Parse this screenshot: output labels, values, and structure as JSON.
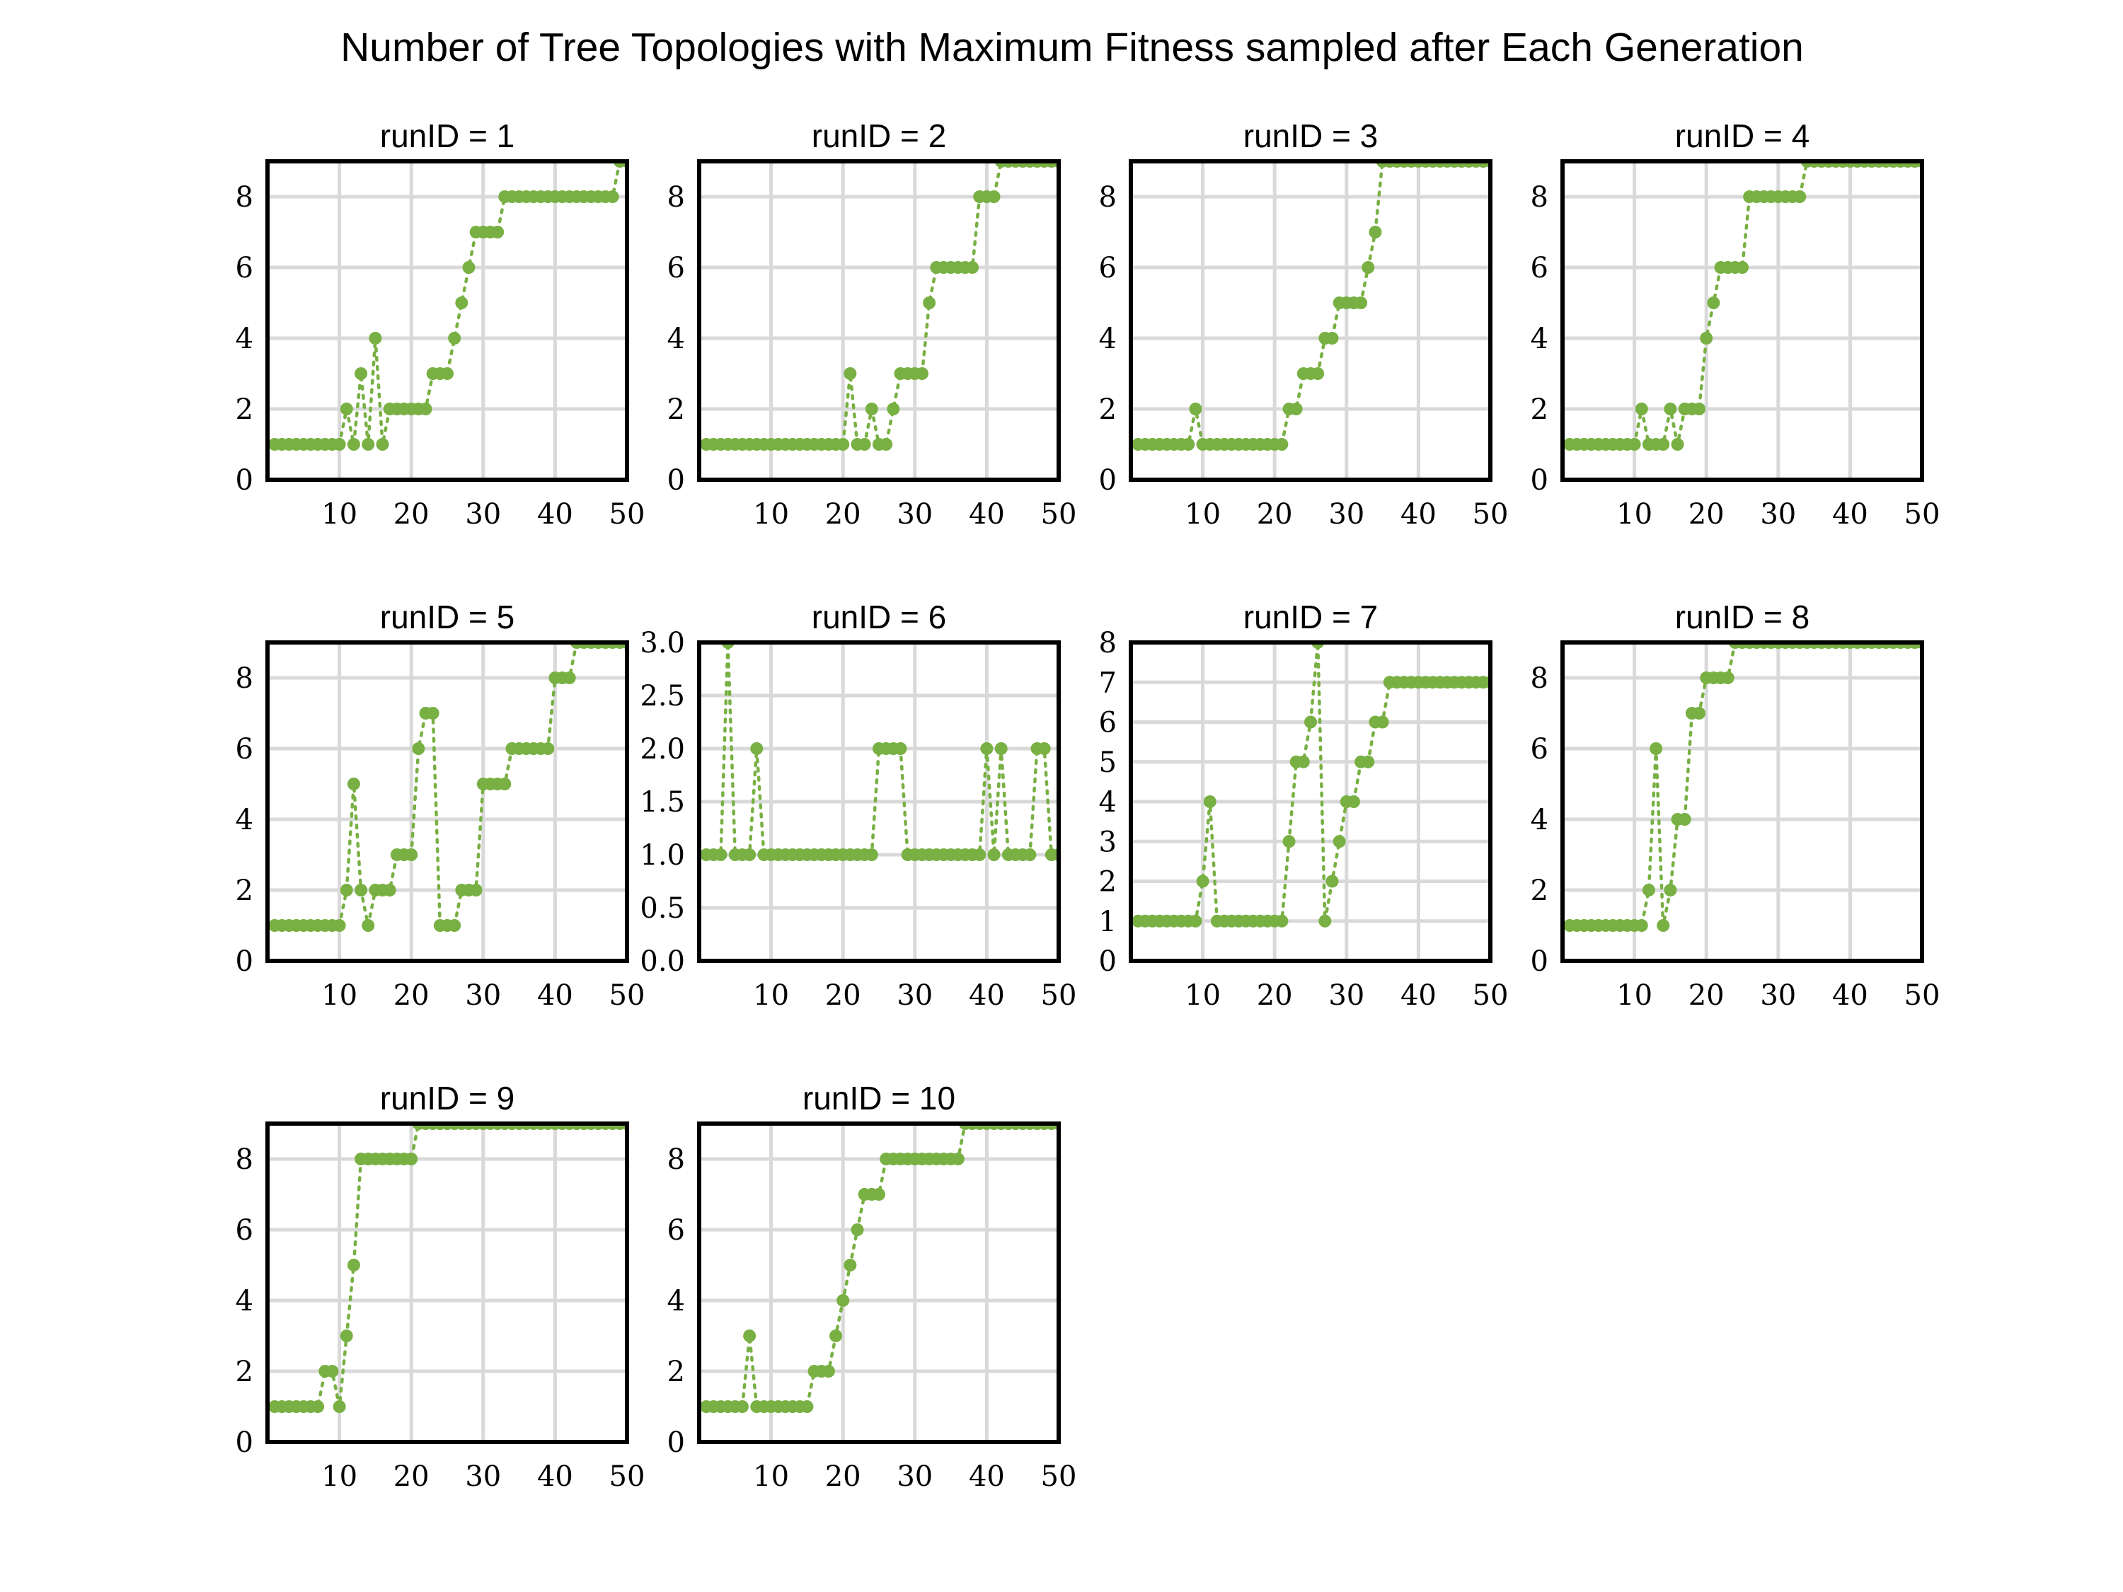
{
  "title": "Number of Tree Topologies with Maximum Fitness sampled after Each Generation",
  "colors": {
    "series": "#78b043",
    "grid": "#d9d9d9",
    "frame": "#000000",
    "background": "#ffffff"
  },
  "chart_data": [
    {
      "type": "scatter",
      "title": "runID = 1",
      "xlim": [
        0,
        50
      ],
      "ylim": [
        0,
        9
      ],
      "xticks": [
        "10",
        "20",
        "30",
        "40",
        "50"
      ],
      "yticks": [
        "0",
        "2",
        "4",
        "6",
        "8"
      ],
      "grid": true,
      "x": [
        1,
        2,
        3,
        4,
        5,
        6,
        7,
        8,
        9,
        10,
        11,
        12,
        13,
        14,
        15,
        16,
        17,
        18,
        19,
        20,
        21,
        22,
        23,
        24,
        25,
        26,
        27,
        28,
        29,
        30,
        31,
        32,
        33,
        34,
        35,
        36,
        37,
        38,
        39,
        40,
        41,
        42,
        43,
        44,
        45,
        46,
        47,
        48,
        49,
        50
      ],
      "y": [
        1,
        1,
        1,
        1,
        1,
        1,
        1,
        1,
        1,
        1,
        2,
        1,
        3,
        1,
        4,
        1,
        2,
        2,
        2,
        2,
        2,
        2,
        3,
        3,
        3,
        4,
        5,
        6,
        7,
        7,
        7,
        7,
        8,
        8,
        8,
        8,
        8,
        8,
        8,
        8,
        8,
        8,
        8,
        8,
        8,
        8,
        8,
        8,
        9,
        9
      ]
    },
    {
      "type": "scatter",
      "title": "runID = 2",
      "xlim": [
        0,
        50
      ],
      "ylim": [
        0,
        9
      ],
      "xticks": [
        "10",
        "20",
        "30",
        "40",
        "50"
      ],
      "yticks": [
        "0",
        "2",
        "4",
        "6",
        "8"
      ],
      "grid": true,
      "x": [
        1,
        2,
        3,
        4,
        5,
        6,
        7,
        8,
        9,
        10,
        11,
        12,
        13,
        14,
        15,
        16,
        17,
        18,
        19,
        20,
        21,
        22,
        23,
        24,
        25,
        26,
        27,
        28,
        29,
        30,
        31,
        32,
        33,
        34,
        35,
        36,
        37,
        38,
        39,
        40,
        41,
        42,
        43,
        44,
        45,
        46,
        47,
        48,
        49,
        50
      ],
      "y": [
        1,
        1,
        1,
        1,
        1,
        1,
        1,
        1,
        1,
        1,
        1,
        1,
        1,
        1,
        1,
        1,
        1,
        1,
        1,
        1,
        3,
        1,
        1,
        2,
        1,
        1,
        2,
        3,
        3,
        3,
        3,
        5,
        6,
        6,
        6,
        6,
        6,
        6,
        8,
        8,
        8,
        9,
        9,
        9,
        9,
        9,
        9,
        9,
        9,
        9
      ]
    },
    {
      "type": "scatter",
      "title": "runID = 3",
      "xlim": [
        0,
        50
      ],
      "ylim": [
        0,
        9
      ],
      "xticks": [
        "10",
        "20",
        "30",
        "40",
        "50"
      ],
      "yticks": [
        "0",
        "2",
        "4",
        "6",
        "8"
      ],
      "grid": true,
      "x": [
        1,
        2,
        3,
        4,
        5,
        6,
        7,
        8,
        9,
        10,
        11,
        12,
        13,
        14,
        15,
        16,
        17,
        18,
        19,
        20,
        21,
        22,
        23,
        24,
        25,
        26,
        27,
        28,
        29,
        30,
        31,
        32,
        33,
        34,
        35,
        36,
        37,
        38,
        39,
        40,
        41,
        42,
        43,
        44,
        45,
        46,
        47,
        48,
        49,
        50
      ],
      "y": [
        1,
        1,
        1,
        1,
        1,
        1,
        1,
        1,
        2,
        1,
        1,
        1,
        1,
        1,
        1,
        1,
        1,
        1,
        1,
        1,
        1,
        2,
        2,
        3,
        3,
        3,
        4,
        4,
        5,
        5,
        5,
        5,
        6,
        7,
        9,
        9,
        9,
        9,
        9,
        9,
        9,
        9,
        9,
        9,
        9,
        9,
        9,
        9,
        9,
        9
      ]
    },
    {
      "type": "scatter",
      "title": "runID = 4",
      "xlim": [
        0,
        50
      ],
      "ylim": [
        0,
        9
      ],
      "xticks": [
        "10",
        "20",
        "30",
        "40",
        "50"
      ],
      "yticks": [
        "0",
        "2",
        "4",
        "6",
        "8"
      ],
      "grid": true,
      "x": [
        1,
        2,
        3,
        4,
        5,
        6,
        7,
        8,
        9,
        10,
        11,
        12,
        13,
        14,
        15,
        16,
        17,
        18,
        19,
        20,
        21,
        22,
        23,
        24,
        25,
        26,
        27,
        28,
        29,
        30,
        31,
        32,
        33,
        34,
        35,
        36,
        37,
        38,
        39,
        40,
        41,
        42,
        43,
        44,
        45,
        46,
        47,
        48,
        49,
        50
      ],
      "y": [
        1,
        1,
        1,
        1,
        1,
        1,
        1,
        1,
        1,
        1,
        2,
        1,
        1,
        1,
        2,
        1,
        2,
        2,
        2,
        4,
        5,
        6,
        6,
        6,
        6,
        8,
        8,
        8,
        8,
        8,
        8,
        8,
        8,
        9,
        9,
        9,
        9,
        9,
        9,
        9,
        9,
        9,
        9,
        9,
        9,
        9,
        9,
        9,
        9,
        9
      ]
    },
    {
      "type": "scatter",
      "title": "runID = 5",
      "xlim": [
        0,
        50
      ],
      "ylim": [
        0,
        9
      ],
      "xticks": [
        "10",
        "20",
        "30",
        "40",
        "50"
      ],
      "yticks": [
        "0",
        "2",
        "4",
        "6",
        "8"
      ],
      "grid": true,
      "x": [
        1,
        2,
        3,
        4,
        5,
        6,
        7,
        8,
        9,
        10,
        11,
        12,
        13,
        14,
        15,
        16,
        17,
        18,
        19,
        20,
        21,
        22,
        23,
        24,
        25,
        26,
        27,
        28,
        29,
        30,
        31,
        32,
        33,
        34,
        35,
        36,
        37,
        38,
        39,
        40,
        41,
        42,
        43,
        44,
        45,
        46,
        47,
        48,
        49,
        50
      ],
      "y": [
        1,
        1,
        1,
        1,
        1,
        1,
        1,
        1,
        1,
        1,
        2,
        5,
        2,
        1,
        2,
        2,
        2,
        3,
        3,
        3,
        6,
        7,
        7,
        1,
        1,
        1,
        2,
        2,
        2,
        5,
        5,
        5,
        5,
        6,
        6,
        6,
        6,
        6,
        6,
        8,
        8,
        8,
        9,
        9,
        9,
        9,
        9,
        9,
        9,
        9
      ]
    },
    {
      "type": "scatter",
      "title": "runID = 6",
      "xlim": [
        0,
        50
      ],
      "ylim": [
        0,
        3
      ],
      "xticks": [
        "10",
        "20",
        "30",
        "40",
        "50"
      ],
      "yticks": [
        "0.0",
        "0.5",
        "1.0",
        "1.5",
        "2.0",
        "2.5",
        "3.0"
      ],
      "grid": true,
      "x": [
        1,
        2,
        3,
        4,
        5,
        6,
        7,
        8,
        9,
        10,
        11,
        12,
        13,
        14,
        15,
        16,
        17,
        18,
        19,
        20,
        21,
        22,
        23,
        24,
        25,
        26,
        27,
        28,
        29,
        30,
        31,
        32,
        33,
        34,
        35,
        36,
        37,
        38,
        39,
        40,
        41,
        42,
        43,
        44,
        45,
        46,
        47,
        48,
        49,
        50
      ],
      "y": [
        1,
        1,
        1,
        3,
        1,
        1,
        1,
        2,
        1,
        1,
        1,
        1,
        1,
        1,
        1,
        1,
        1,
        1,
        1,
        1,
        1,
        1,
        1,
        1,
        2,
        2,
        2,
        2,
        1,
        1,
        1,
        1,
        1,
        1,
        1,
        1,
        1,
        1,
        1,
        2,
        1,
        2,
        1,
        1,
        1,
        1,
        2,
        2,
        1,
        1
      ]
    },
    {
      "type": "scatter",
      "title": "runID = 7",
      "xlim": [
        0,
        50
      ],
      "ylim": [
        0,
        8
      ],
      "xticks": [
        "10",
        "20",
        "30",
        "40",
        "50"
      ],
      "yticks": [
        "0",
        "1",
        "2",
        "3",
        "4",
        "5",
        "6",
        "7",
        "8"
      ],
      "grid": true,
      "x": [
        1,
        2,
        3,
        4,
        5,
        6,
        7,
        8,
        9,
        10,
        11,
        12,
        13,
        14,
        15,
        16,
        17,
        18,
        19,
        20,
        21,
        22,
        23,
        24,
        25,
        26,
        27,
        28,
        29,
        30,
        31,
        32,
        33,
        34,
        35,
        36,
        37,
        38,
        39,
        40,
        41,
        42,
        43,
        44,
        45,
        46,
        47,
        48,
        49,
        50
      ],
      "y": [
        1,
        1,
        1,
        1,
        1,
        1,
        1,
        1,
        1,
        2,
        4,
        1,
        1,
        1,
        1,
        1,
        1,
        1,
        1,
        1,
        1,
        3,
        5,
        5,
        6,
        8,
        1,
        2,
        3,
        4,
        4,
        5,
        5,
        6,
        6,
        7,
        7,
        7,
        7,
        7,
        7,
        7,
        7,
        7,
        7,
        7,
        7,
        7,
        7,
        7
      ]
    },
    {
      "type": "scatter",
      "title": "runID = 8",
      "xlim": [
        0,
        50
      ],
      "ylim": [
        0,
        9
      ],
      "xticks": [
        "10",
        "20",
        "30",
        "40",
        "50"
      ],
      "yticks": [
        "0",
        "2",
        "4",
        "6",
        "8"
      ],
      "grid": true,
      "x": [
        1,
        2,
        3,
        4,
        5,
        6,
        7,
        8,
        9,
        10,
        11,
        12,
        13,
        14,
        15,
        16,
        17,
        18,
        19,
        20,
        21,
        22,
        23,
        24,
        25,
        26,
        27,
        28,
        29,
        30,
        31,
        32,
        33,
        34,
        35,
        36,
        37,
        38,
        39,
        40,
        41,
        42,
        43,
        44,
        45,
        46,
        47,
        48,
        49,
        50
      ],
      "y": [
        1,
        1,
        1,
        1,
        1,
        1,
        1,
        1,
        1,
        1,
        1,
        2,
        6,
        1,
        2,
        4,
        4,
        7,
        7,
        8,
        8,
        8,
        8,
        9,
        9,
        9,
        9,
        9,
        9,
        9,
        9,
        9,
        9,
        9,
        9,
        9,
        9,
        9,
        9,
        9,
        9,
        9,
        9,
        9,
        9,
        9,
        9,
        9,
        9,
        9
      ]
    },
    {
      "type": "scatter",
      "title": "runID = 9",
      "xlim": [
        0,
        50
      ],
      "ylim": [
        0,
        9
      ],
      "xticks": [
        "10",
        "20",
        "30",
        "40",
        "50"
      ],
      "yticks": [
        "0",
        "2",
        "4",
        "6",
        "8"
      ],
      "grid": true,
      "x": [
        1,
        2,
        3,
        4,
        5,
        6,
        7,
        8,
        9,
        10,
        11,
        12,
        13,
        14,
        15,
        16,
        17,
        18,
        19,
        20,
        21,
        22,
        23,
        24,
        25,
        26,
        27,
        28,
        29,
        30,
        31,
        32,
        33,
        34,
        35,
        36,
        37,
        38,
        39,
        40,
        41,
        42,
        43,
        44,
        45,
        46,
        47,
        48,
        49,
        50
      ],
      "y": [
        1,
        1,
        1,
        1,
        1,
        1,
        1,
        2,
        2,
        1,
        3,
        5,
        8,
        8,
        8,
        8,
        8,
        8,
        8,
        8,
        9,
        9,
        9,
        9,
        9,
        9,
        9,
        9,
        9,
        9,
        9,
        9,
        9,
        9,
        9,
        9,
        9,
        9,
        9,
        9,
        9,
        9,
        9,
        9,
        9,
        9,
        9,
        9,
        9,
        9
      ]
    },
    {
      "type": "scatter",
      "title": "runID = 10",
      "xlim": [
        0,
        50
      ],
      "ylim": [
        0,
        9
      ],
      "xticks": [
        "10",
        "20",
        "30",
        "40",
        "50"
      ],
      "yticks": [
        "0",
        "2",
        "4",
        "6",
        "8"
      ],
      "grid": true,
      "x": [
        1,
        2,
        3,
        4,
        5,
        6,
        7,
        8,
        9,
        10,
        11,
        12,
        13,
        14,
        15,
        16,
        17,
        18,
        19,
        20,
        21,
        22,
        23,
        24,
        25,
        26,
        27,
        28,
        29,
        30,
        31,
        32,
        33,
        34,
        35,
        36,
        37,
        38,
        39,
        40,
        41,
        42,
        43,
        44,
        45,
        46,
        47,
        48,
        49,
        50
      ],
      "y": [
        1,
        1,
        1,
        1,
        1,
        1,
        3,
        1,
        1,
        1,
        1,
        1,
        1,
        1,
        1,
        2,
        2,
        2,
        3,
        4,
        5,
        6,
        7,
        7,
        7,
        8,
        8,
        8,
        8,
        8,
        8,
        8,
        8,
        8,
        8,
        8,
        9,
        9,
        9,
        9,
        9,
        9,
        9,
        9,
        9,
        9,
        9,
        9,
        9,
        9
      ]
    }
  ]
}
